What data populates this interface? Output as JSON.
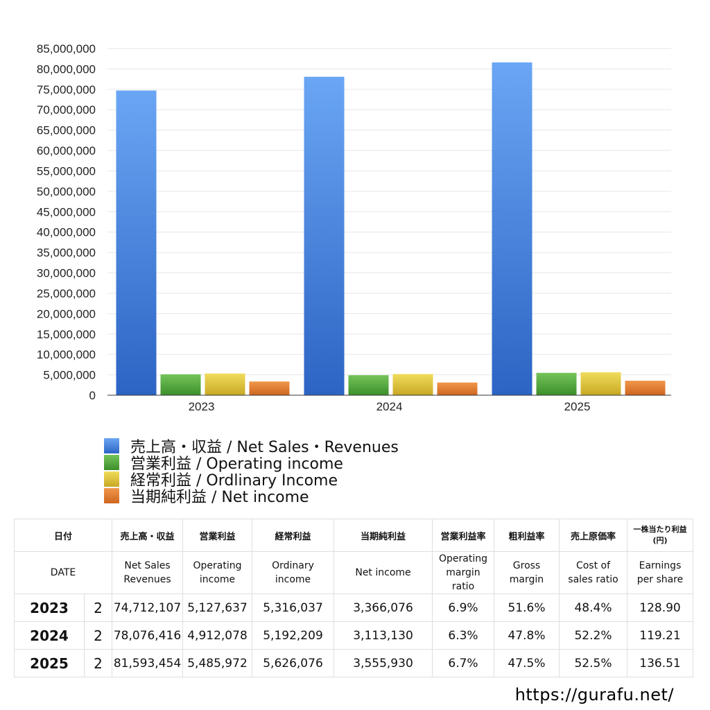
{
  "chart_data": {
    "type": "bar",
    "categories": [
      "2023",
      "2024",
      "2025"
    ],
    "series": [
      {
        "name": "売上高・収益 / Net Sales・Revenues",
        "values": [
          74712107,
          78076416,
          81593454
        ],
        "color": "#4a8ae6"
      },
      {
        "name": "営業利益 / Operating income",
        "values": [
          5127637,
          4912078,
          5485972
        ],
        "color": "#4ea83a"
      },
      {
        "name": "経常利益 / Ordlinary Income",
        "values": [
          5316037,
          5192209,
          5626076
        ],
        "color": "#dcc234"
      },
      {
        "name": "当期純利益 / Net income",
        "values": [
          3366076,
          3113130,
          3555930
        ],
        "color": "#e07a2a"
      }
    ],
    "ylim": [
      0,
      85000000
    ],
    "yticks": [
      0,
      5000000,
      10000000,
      15000000,
      20000000,
      25000000,
      30000000,
      35000000,
      40000000,
      45000000,
      50000000,
      55000000,
      60000000,
      65000000,
      70000000,
      75000000,
      80000000,
      85000000
    ],
    "grid": true,
    "legend_position": "bottom-left"
  },
  "table": {
    "headers_jp": [
      "日付",
      "売上高・収益",
      "営業利益",
      "経常利益",
      "当期純利益",
      "営業利益率",
      "粗利益率",
      "売上原価率",
      "一株当たり利益",
      "(円)"
    ],
    "headers_en": [
      [
        "DATE"
      ],
      [
        "Net Sales",
        "Revenues"
      ],
      [
        "Operating",
        "income"
      ],
      [
        "Ordinary",
        "income"
      ],
      [
        "Net income"
      ],
      [
        "Operating",
        "margin",
        "ratio"
      ],
      [
        "Gross",
        "margin"
      ],
      [
        "Cost of",
        "sales ratio"
      ],
      [
        "Earnings",
        "per share"
      ]
    ],
    "rows": [
      {
        "year": "2023",
        "q": "2",
        "sales": "74,712,107",
        "op": "5,127,637",
        "ord": "5,316,037",
        "net": "3,366,076",
        "op_margin": "6.9%",
        "gross": "51.6%",
        "cost": "48.4%",
        "eps": "128.90"
      },
      {
        "year": "2024",
        "q": "2",
        "sales": "78,076,416",
        "op": "4,912,078",
        "ord": "5,192,209",
        "net": "3,113,130",
        "op_margin": "6.3%",
        "gross": "47.8%",
        "cost": "52.2%",
        "eps": "119.21"
      },
      {
        "year": "2025",
        "q": "2",
        "sales": "81,593,454",
        "op": "5,485,972",
        "ord": "5,626,076",
        "net": "3,555,930",
        "op_margin": "6.7%",
        "gross": "47.5%",
        "cost": "52.5%",
        "eps": "136.51"
      }
    ]
  },
  "footer": {
    "url": "https://gurafu.net/"
  }
}
